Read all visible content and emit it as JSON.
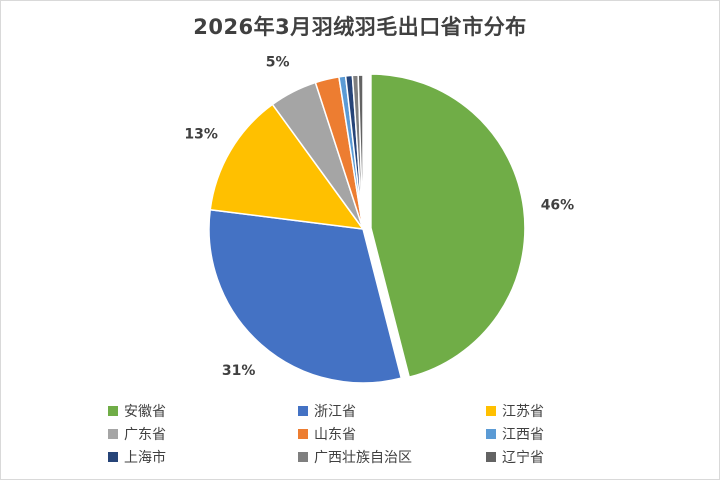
{
  "chart_data": {
    "type": "pie",
    "title": "2026年3月羽绒羽毛出口省市分布",
    "categories": [
      "安徽省",
      "浙江省",
      "江苏省",
      "广东省",
      "山东省",
      "江西省",
      "上海市",
      "广西壮族自治区",
      "辽宁省"
    ],
    "values": [
      46,
      31,
      13,
      5,
      2.5,
      0.7,
      0.7,
      0.6,
      0.5
    ],
    "data_labels": [
      "46%",
      "31%",
      "13%",
      "5%",
      "",
      "",
      "",
      "",
      ""
    ],
    "colors": [
      "#70AD47",
      "#4472C4",
      "#FFC000",
      "#A5A5A5",
      "#ED7D31",
      "#5B9BD5",
      "#264478",
      "#7F7F7F",
      "#636363"
    ],
    "exploded_slice": "安徽省",
    "legend_position": "bottom",
    "start_angle_deg": 0,
    "direction": "clockwise"
  }
}
